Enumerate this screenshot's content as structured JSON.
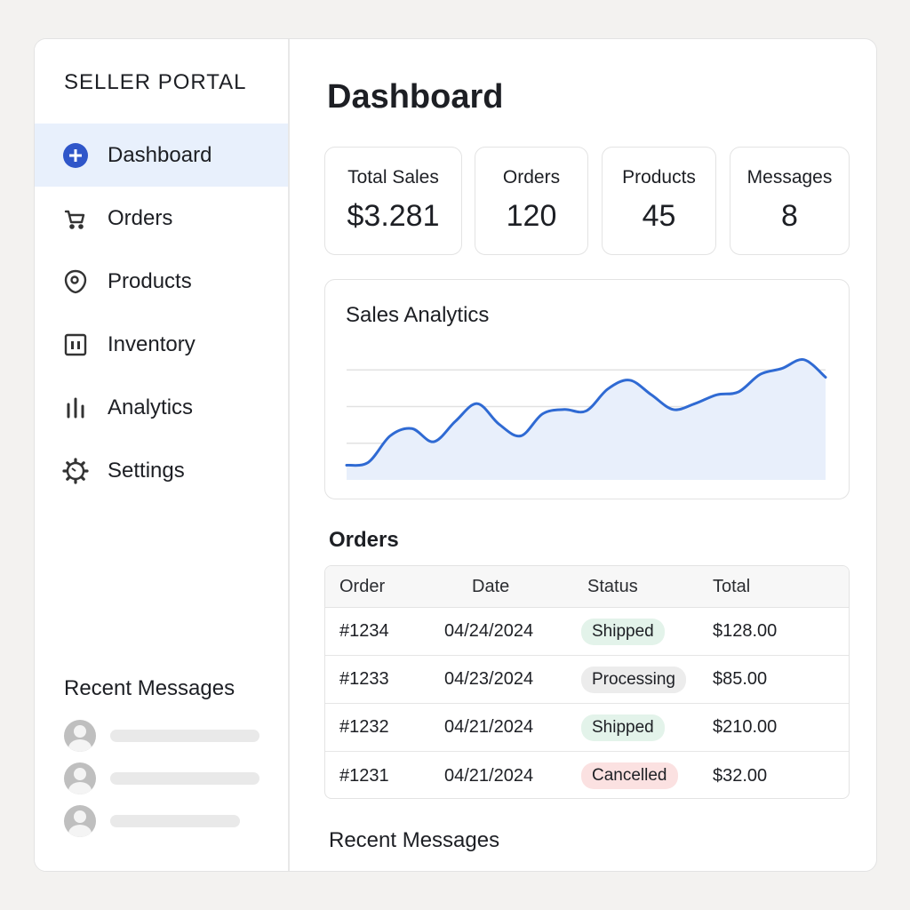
{
  "app": {
    "brand": "SELLER PORTAL"
  },
  "colors": {
    "accent": "#2f6ad3",
    "active_bg": "#e8f0fc",
    "chart_fill": "#e8effb"
  },
  "sidebar": {
    "items": [
      {
        "label": "Dashboard",
        "icon": "plus-circle-icon",
        "active": true
      },
      {
        "label": "Orders",
        "icon": "cart-icon"
      },
      {
        "label": "Products",
        "icon": "tag-icon"
      },
      {
        "label": "Inventory",
        "icon": "box-icon"
      },
      {
        "label": "Analytics",
        "icon": "bar-chart-icon"
      },
      {
        "label": "Settings",
        "icon": "gear-icon"
      }
    ],
    "recent_messages_title": "Recent Messages"
  },
  "main": {
    "title": "Dashboard",
    "stats": [
      {
        "label": "Total Sales",
        "value": "$3.281"
      },
      {
        "label": "Orders",
        "value": "120"
      },
      {
        "label": "Products",
        "value": "45"
      },
      {
        "label": "Messages",
        "value": "8"
      }
    ],
    "chart_title": "Sales Analytics",
    "orders_title": "Orders",
    "orders": {
      "columns": [
        "Order",
        "Date",
        "Status",
        "Total"
      ],
      "rows": [
        {
          "order": "#1234",
          "date": "04/24/2024",
          "status": "Shipped",
          "total": "$128.00"
        },
        {
          "order": "#1233",
          "date": "04/23/2024",
          "status": "Processing",
          "total": "$85.00"
        },
        {
          "order": "#1232",
          "date": "04/21/2024",
          "status": "Shipped",
          "total": "$210.00"
        },
        {
          "order": "#1231",
          "date": "04/21/2024",
          "status": "Cancelled",
          "total": "$32.00"
        }
      ]
    },
    "recent_messages_title": "Recent Messages"
  },
  "chart_data": {
    "type": "area",
    "title": "Sales Analytics",
    "x": [
      0,
      1,
      2,
      3,
      4,
      5,
      6,
      7,
      8,
      9,
      10,
      11,
      12,
      13,
      14,
      15,
      16,
      17,
      18,
      19,
      20,
      21,
      22
    ],
    "values": [
      10,
      12,
      30,
      35,
      26,
      40,
      52,
      38,
      30,
      45,
      48,
      47,
      62,
      68,
      58,
      48,
      52,
      58,
      60,
      72,
      76,
      82,
      70
    ],
    "ylim": [
      0,
      100
    ],
    "grid": true,
    "xlabel": "",
    "ylabel": ""
  }
}
